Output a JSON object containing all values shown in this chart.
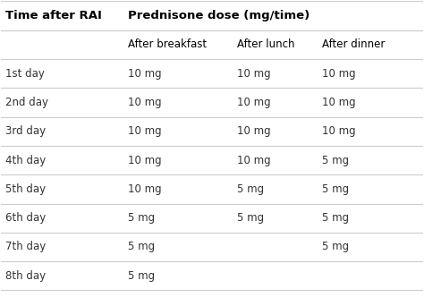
{
  "col_headers_row1": [
    "Time after RAI",
    "Prednisone dose (mg/time)"
  ],
  "col_headers_row2": [
    "",
    "After breakfast",
    "After lunch",
    "After dinner"
  ],
  "rows": [
    [
      "1st day",
      "10 mg",
      "10 mg",
      "10 mg"
    ],
    [
      "2nd day",
      "10 mg",
      "10 mg",
      "10 mg"
    ],
    [
      "3rd day",
      "10 mg",
      "10 mg",
      "10 mg"
    ],
    [
      "4th day",
      "10 mg",
      "10 mg",
      "5 mg"
    ],
    [
      "5th day",
      "10 mg",
      "5 mg",
      "5 mg"
    ],
    [
      "6th day",
      "5 mg",
      "5 mg",
      "5 mg"
    ],
    [
      "7th day",
      "5 mg",
      "",
      "5 mg"
    ],
    [
      "8th day",
      "5 mg",
      "",
      ""
    ]
  ],
  "bg_color": "#ffffff",
  "header_text_color": "#000000",
  "cell_text_color": "#333333",
  "line_color": "#cccccc",
  "header_bold": true,
  "font_size_header": 9.5,
  "font_size_subheader": 8.5,
  "font_size_cell": 8.5
}
